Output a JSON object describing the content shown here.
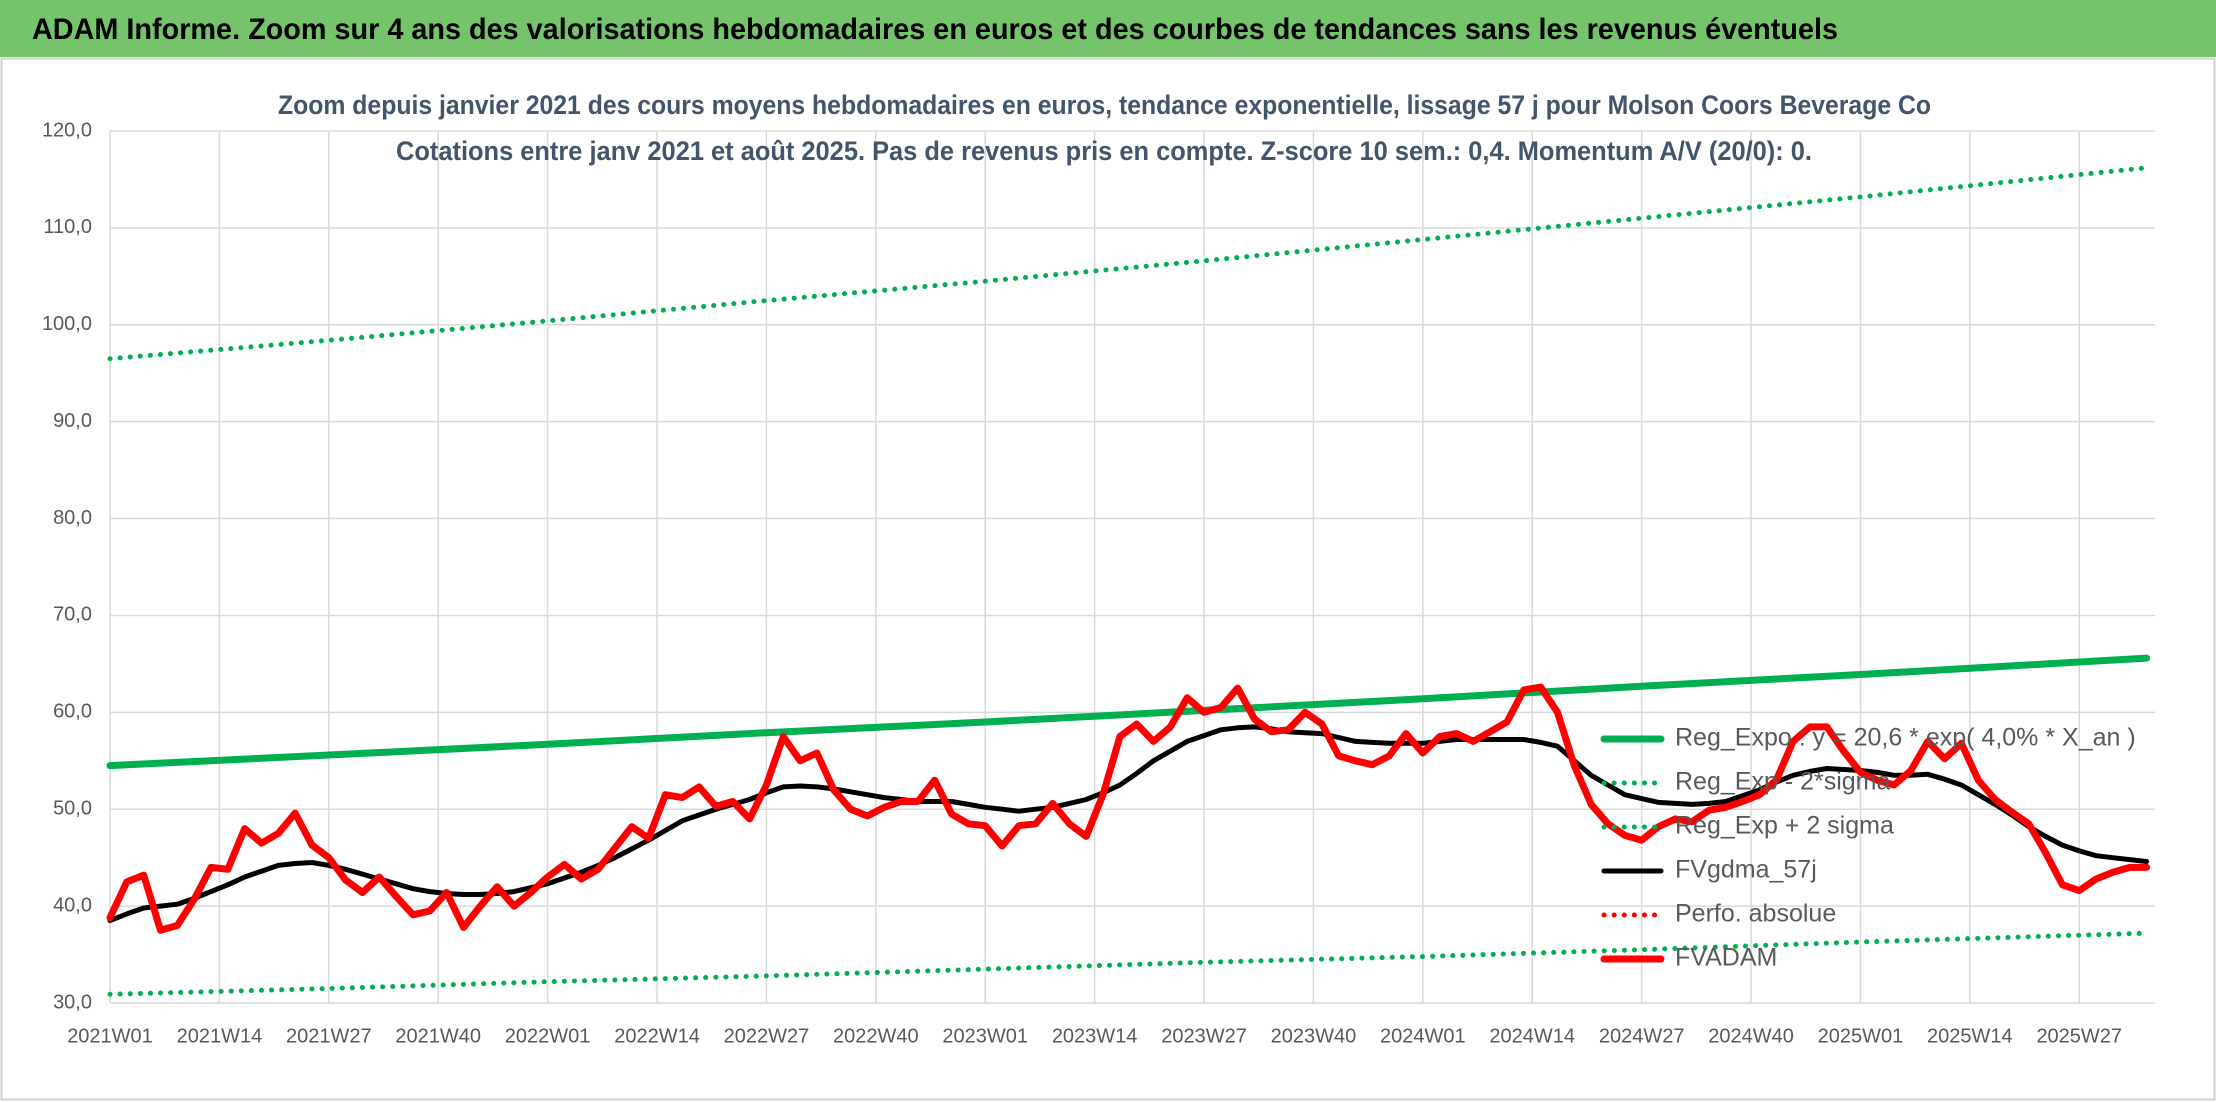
{
  "chart_data": {
    "type": "line",
    "header": "ADAM Informe. Zoom sur 4 ans des valorisations hebdomadaires en euros et des courbes de tendances sans les revenus éventuels",
    "title": "Zoom depuis janvier 2021 des cours moyens hebdomadaires en euros, tendance exponentielle, lissage 57 j pour Molson Coors Beverage Co",
    "subtitle": "Cotations entre janv 2021 et août 2025. Pas de revenus pris en compte. Z-score 10 sem.: 0,4. Momentum A/V (20/0): 0.",
    "grid": true,
    "legend": "right",
    "xlim": [
      0,
      243
    ],
    "xticks": [
      {
        "value": 0,
        "label": "2021W01"
      },
      {
        "value": 13,
        "label": "2021W14"
      },
      {
        "value": 26,
        "label": "2021W27"
      },
      {
        "value": 39,
        "label": "2021W40"
      },
      {
        "value": 52,
        "label": "2022W01"
      },
      {
        "value": 65,
        "label": "2022W14"
      },
      {
        "value": 78,
        "label": "2022W27"
      },
      {
        "value": 91,
        "label": "2022W40"
      },
      {
        "value": 104,
        "label": "2023W01"
      },
      {
        "value": 117,
        "label": "2023W14"
      },
      {
        "value": 130,
        "label": "2023W27"
      },
      {
        "value": 143,
        "label": "2023W40"
      },
      {
        "value": 156,
        "label": "2024W01"
      },
      {
        "value": 169,
        "label": "2024W14"
      },
      {
        "value": 182,
        "label": "2024W27"
      },
      {
        "value": 195,
        "label": "2024W40"
      },
      {
        "value": 208,
        "label": "2025W01"
      },
      {
        "value": 221,
        "label": "2025W14"
      },
      {
        "value": 234,
        "label": "2025W27"
      }
    ],
    "ylim": [
      30,
      120
    ],
    "yticks": [
      {
        "value": 30,
        "label": "30,0"
      },
      {
        "value": 40,
        "label": "40,0"
      },
      {
        "value": 50,
        "label": "50,0"
      },
      {
        "value": 60,
        "label": "60,0"
      },
      {
        "value": 70,
        "label": "70,0"
      },
      {
        "value": 80,
        "label": "80,0"
      },
      {
        "value": 90,
        "label": "90,0"
      },
      {
        "value": 100,
        "label": "100,0"
      },
      {
        "value": 110,
        "label": "110,0"
      },
      {
        "value": 120,
        "label": "120,0"
      }
    ],
    "x": [
      0,
      2,
      4,
      6,
      8,
      10,
      12,
      14,
      16,
      18,
      20,
      22,
      24,
      26,
      28,
      30,
      32,
      34,
      36,
      38,
      40,
      42,
      44,
      46,
      48,
      50,
      52,
      54,
      56,
      58,
      60,
      62,
      64,
      66,
      68,
      70,
      72,
      74,
      76,
      78,
      80,
      82,
      84,
      86,
      88,
      90,
      92,
      94,
      96,
      98,
      100,
      102,
      104,
      106,
      108,
      110,
      112,
      114,
      116,
      118,
      120,
      122,
      124,
      126,
      128,
      130,
      132,
      134,
      136,
      138,
      140,
      142,
      144,
      146,
      148,
      150,
      152,
      154,
      156,
      158,
      160,
      162,
      164,
      166,
      168,
      170,
      172,
      174,
      176,
      178,
      180,
      182,
      184,
      186,
      188,
      190,
      192,
      194,
      196,
      198,
      200,
      202,
      204,
      206,
      208,
      210,
      212,
      214,
      216,
      218,
      220,
      222,
      224,
      226,
      228,
      230,
      232,
      234,
      236,
      238,
      240,
      242
    ],
    "series": [
      {
        "name": "Reg_Expo : y = 20,6 * exp( 4,0% *  X_an )",
        "color": "#00b050",
        "line_style": "solid",
        "x": [
          0,
          26,
          52,
          78,
          104,
          130,
          156,
          182,
          208,
          234,
          242
        ],
        "values": [
          54.5,
          55.6,
          56.7,
          57.9,
          59.0,
          60.2,
          61.4,
          62.7,
          63.9,
          65.2,
          65.6
        ]
      },
      {
        "name": "Reg_Exp - 2*sigma",
        "color": "#00b050",
        "line_style": "dotted",
        "x": [
          0,
          26,
          52,
          78,
          104,
          130,
          156,
          182,
          208,
          234,
          242
        ],
        "values": [
          30.9,
          31.5,
          32.2,
          32.8,
          33.5,
          34.2,
          34.8,
          35.5,
          36.3,
          37.0,
          37.2
        ]
      },
      {
        "name": "Reg_Exp + 2 sigma",
        "color": "#00b050",
        "line_style": "dotted",
        "x": [
          0,
          26,
          52,
          78,
          104,
          130,
          156,
          182,
          208,
          234,
          242
        ],
        "values": [
          96.5,
          98.4,
          100.4,
          102.5,
          104.5,
          106.6,
          108.8,
          111.0,
          113.2,
          115.5,
          116.2
        ]
      },
      {
        "name": "FVgdma_57j",
        "color": "#000000",
        "line_style": "solid",
        "values": [
          38.5,
          39.2,
          39.8,
          40,
          40.2,
          40.8,
          41.5,
          42.2,
          43,
          43.6,
          44.2,
          44.4,
          44.5,
          44.2,
          43.8,
          43.3,
          42.8,
          42.3,
          41.8,
          41.5,
          41.3,
          41.2,
          41.2,
          41.3,
          41.5,
          41.9,
          42.3,
          42.9,
          43.5,
          44.2,
          45,
          45.9,
          46.8,
          47.8,
          48.8,
          49.4,
          50,
          50.5,
          51,
          51.7,
          52.3,
          52.4,
          52.3,
          52.1,
          51.8,
          51.5,
          51.2,
          51,
          50.8,
          50.8,
          50.8,
          50.5,
          50.2,
          50,
          49.8,
          50,
          50.2,
          50.6,
          51,
          51.7,
          52.5,
          53.7,
          55,
          56,
          57,
          57.6,
          58.2,
          58.4,
          58.5,
          58.3,
          58,
          57.9,
          57.8,
          57.4,
          57,
          56.9,
          56.8,
          56.8,
          56.8,
          57,
          57.2,
          57.2,
          57.2,
          57.2,
          57.2,
          56.9,
          56.5,
          55,
          53.5,
          52.5,
          51.5,
          51.1,
          50.7,
          50.6,
          50.5,
          50.6,
          50.8,
          51.4,
          52,
          52.8,
          53.5,
          53.9,
          54.2,
          54.1,
          54,
          53.8,
          53.5,
          53.5,
          53.6,
          53.1,
          52.5,
          51.5,
          50.5,
          49.4,
          48.2,
          47.2,
          46.3,
          45.7,
          45.2,
          45,
          44.8,
          44.6
        ]
      },
      {
        "name": "Perfo. absolue",
        "color": "#ff0000",
        "line_style": "dotted"
      },
      {
        "name": "FVADAM",
        "color": "#ff0000",
        "line_style": "solid",
        "values": [
          38.8,
          42.5,
          43.2,
          37.5,
          38,
          40.7,
          44,
          43.8,
          48,
          46.5,
          47.5,
          49.6,
          46.3,
          45,
          42.7,
          41.4,
          43,
          41,
          39.1,
          39.5,
          41.4,
          37.8,
          40,
          42,
          40,
          41.4,
          43,
          44.3,
          42.8,
          43.8,
          46,
          48.2,
          47,
          51.5,
          51.2,
          52.3,
          50.3,
          50.8,
          49,
          52.5,
          57.5,
          55,
          55.8,
          52,
          50,
          49.3,
          50.2,
          50.8,
          50.8,
          53,
          49.5,
          48.5,
          48.3,
          46.2,
          48.3,
          48.5,
          50.6,
          48.5,
          47.2,
          51.5,
          57.5,
          58.8,
          57,
          58.5,
          61.5,
          60,
          60.5,
          62.5,
          59.3,
          58,
          58.2,
          60,
          58.8,
          55.5,
          55,
          54.6,
          55.5,
          57.8,
          55.8,
          57.5,
          57.8,
          57,
          58,
          59,
          62.3,
          62.6,
          60,
          54.5,
          50.5,
          48.5,
          47.3,
          46.8,
          48.2,
          49,
          48.7,
          49.9,
          50.2,
          50.8,
          51.5,
          53,
          57,
          58.5,
          58.5,
          56,
          53.8,
          53,
          52.5,
          54,
          57,
          55.2,
          56.8,
          53,
          51,
          49.7,
          48.5,
          45.5,
          42.2,
          41.6,
          42.8,
          43.5,
          44,
          44
        ]
      }
    ]
  }
}
